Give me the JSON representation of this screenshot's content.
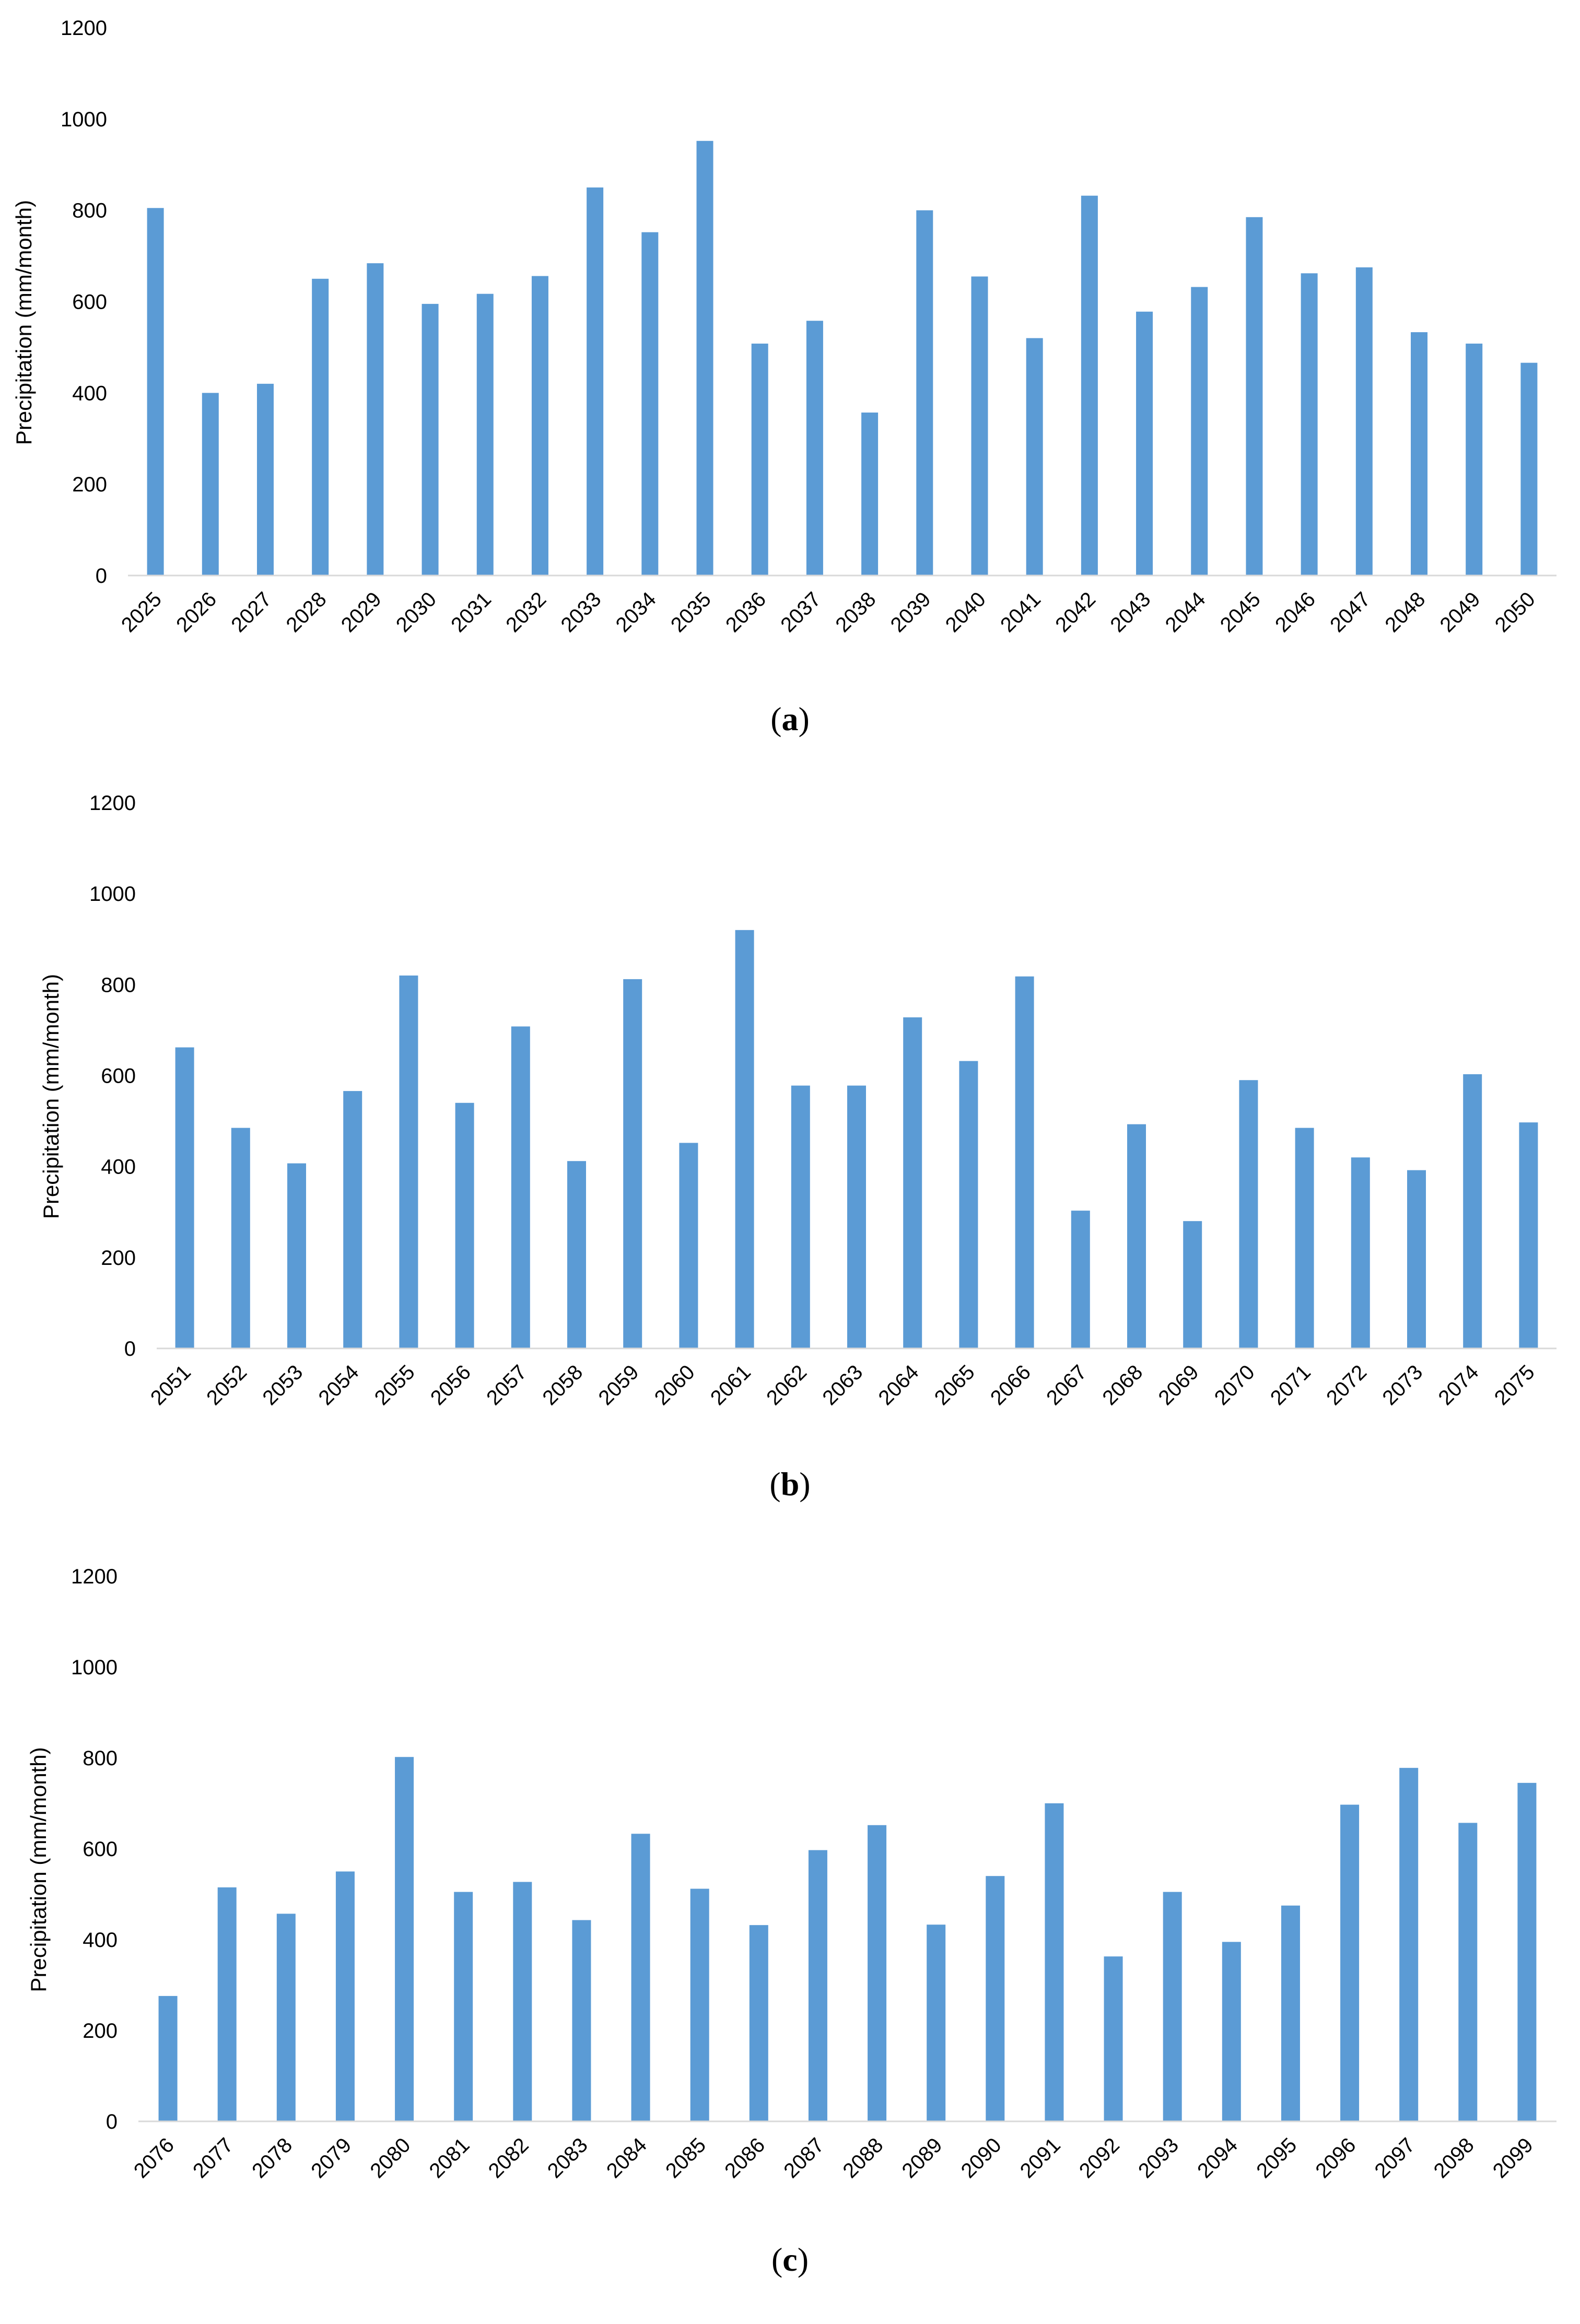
{
  "colors": {
    "bar": "#5b9bd5",
    "axis": "#d9d9d9",
    "text": "#000000"
  },
  "chart_data": [
    {
      "type": "bar",
      "caption": "a",
      "title": "",
      "xlabel": "",
      "ylabel": "Precipitation (mm/month)",
      "ylim": [
        0,
        1200
      ],
      "yticks": [
        0,
        200,
        400,
        600,
        800,
        1000,
        1200
      ],
      "grid": false,
      "categories": [
        "2025",
        "2026",
        "2027",
        "2028",
        "2029",
        "2030",
        "2031",
        "2032",
        "2033",
        "2034",
        "2035",
        "2036",
        "2037",
        "2038",
        "2039",
        "2040",
        "2041",
        "2042",
        "2043",
        "2044",
        "2045",
        "2046",
        "2047",
        "2048",
        "2049",
        "2050"
      ],
      "values": [
        805,
        400,
        420,
        650,
        684,
        595,
        617,
        656,
        850,
        752,
        952,
        508,
        558,
        357,
        800,
        655,
        520,
        832,
        578,
        632,
        785,
        662,
        675,
        533,
        508,
        466
      ]
    },
    {
      "type": "bar",
      "caption": "b",
      "title": "",
      "xlabel": "",
      "ylabel": "Precipitation (mm/month)",
      "ylim": [
        0,
        1200
      ],
      "yticks": [
        0,
        200,
        400,
        600,
        800,
        1000,
        1200
      ],
      "grid": false,
      "categories": [
        "2051",
        "2052",
        "2053",
        "2054",
        "2055",
        "2056",
        "2057",
        "2058",
        "2059",
        "2060",
        "2061",
        "2062",
        "2063",
        "2064",
        "2065",
        "2066",
        "2067",
        "2068",
        "2069",
        "2070",
        "2071",
        "2072",
        "2073",
        "2074",
        "2075"
      ],
      "values": [
        662,
        485,
        407,
        566,
        820,
        540,
        708,
        412,
        812,
        452,
        920,
        578,
        578,
        728,
        632,
        818,
        303,
        493,
        280,
        590,
        485,
        420,
        392,
        603,
        497
      ]
    },
    {
      "type": "bar",
      "caption": "c",
      "title": "",
      "xlabel": "",
      "ylabel": "Precipitation (mm/month)",
      "ylim": [
        0,
        1200
      ],
      "yticks": [
        0,
        200,
        400,
        600,
        800,
        1000,
        1200
      ],
      "grid": false,
      "categories": [
        "2076",
        "2077",
        "2078",
        "2079",
        "2080",
        "2081",
        "2082",
        "2083",
        "2084",
        "2085",
        "2086",
        "2087",
        "2088",
        "2089",
        "2090",
        "2091",
        "2092",
        "2093",
        "2094",
        "2095",
        "2096",
        "2097",
        "2098",
        "2099"
      ],
      "values": [
        276,
        515,
        457,
        550,
        802,
        505,
        527,
        443,
        633,
        512,
        432,
        597,
        652,
        433,
        540,
        700,
        363,
        505,
        395,
        475,
        697,
        778,
        657,
        745
      ]
    }
  ]
}
